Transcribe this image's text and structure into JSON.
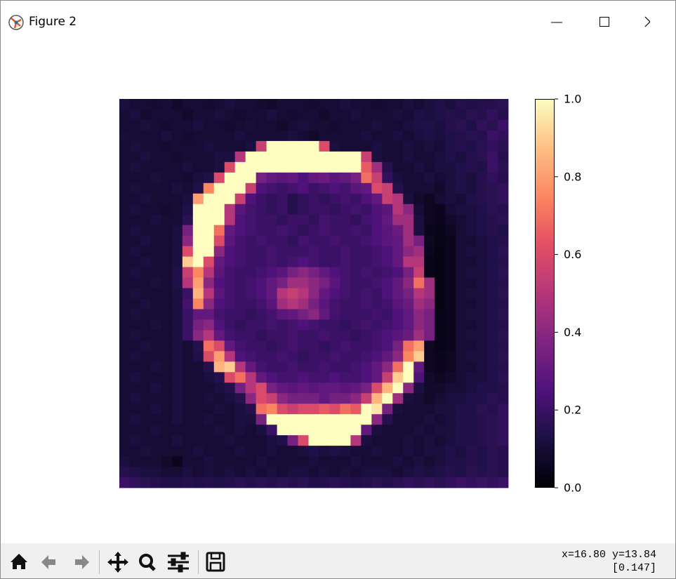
{
  "window": {
    "title": "Figure 2"
  },
  "status": {
    "coords": "x=16.80 y=13.84",
    "value": "[0.147]"
  },
  "chart_data": {
    "type": "heatmap",
    "colormap": "magma",
    "zlim": [
      0,
      1
    ],
    "colorbar_ticks": [
      {
        "value": 0,
        "label": "0.0"
      },
      0.2,
      0.4,
      0.6,
      0.8,
      {
        "value": 1,
        "label": "1.0"
      }
    ],
    "z": [
      [
        0.12,
        0.1,
        0.1,
        0.09,
        0.1,
        0.08,
        0.1,
        0.1,
        0.09,
        0.1,
        0.12,
        0.1,
        0.1,
        0.09,
        0.08,
        0.1,
        0.1,
        0.1,
        0.09,
        0.1,
        0.1,
        0.12,
        0.1,
        0.1,
        0.09,
        0.1,
        0.1,
        0.12,
        0.1,
        0.12,
        0.14,
        0.12,
        0.15,
        0.14,
        0.15,
        0.15,
        0.16
      ],
      [
        0.1,
        0.12,
        0.09,
        0.1,
        0.1,
        0.1,
        0.08,
        0.1,
        0.1,
        0.12,
        0.1,
        0.09,
        0.1,
        0.1,
        0.12,
        0.1,
        0.09,
        0.1,
        0.1,
        0.08,
        0.1,
        0.1,
        0.12,
        0.1,
        0.1,
        0.1,
        0.12,
        0.1,
        0.13,
        0.12,
        0.14,
        0.15,
        0.14,
        0.16,
        0.15,
        0.18,
        0.15
      ],
      [
        0.1,
        0.1,
        0.12,
        0.1,
        0.09,
        0.1,
        0.1,
        0.12,
        0.1,
        0.1,
        0.09,
        0.1,
        0.11,
        0.1,
        0.1,
        0.08,
        0.1,
        0.12,
        0.1,
        0.1,
        0.09,
        0.1,
        0.1,
        0.1,
        0.12,
        0.1,
        0.1,
        0.12,
        0.13,
        0.14,
        0.12,
        0.15,
        0.16,
        0.14,
        0.18,
        0.16,
        0.2
      ],
      [
        0.11,
        0.1,
        0.1,
        0.1,
        0.12,
        0.1,
        0.09,
        0.1,
        0.1,
        0.1,
        0.1,
        0.12,
        0.1,
        0.1,
        0.1,
        0.1,
        0.12,
        0.1,
        0.08,
        0.1,
        0.1,
        0.1,
        0.1,
        0.12,
        0.1,
        0.1,
        0.12,
        0.1,
        0.12,
        0.13,
        0.12,
        0.14,
        0.15,
        0.16,
        0.15,
        0.2,
        0.18
      ],
      [
        0.1,
        0.12,
        0.1,
        0.1,
        0.09,
        0.1,
        0.1,
        0.1,
        0.12,
        0.1,
        0.1,
        0.1,
        0.12,
        0.55,
        1,
        1,
        1,
        1,
        1,
        0.6,
        0.12,
        0.1,
        0.1,
        0.1,
        0.12,
        0.1,
        0.1,
        0.12,
        0.1,
        0.12,
        0.1,
        0.14,
        0.15,
        0.14,
        0.16,
        0.18,
        0.16
      ],
      [
        0.1,
        0.1,
        0.12,
        0.1,
        0.1,
        0.09,
        0.1,
        0.1,
        0.1,
        0.12,
        0.12,
        0.5,
        1,
        1,
        1,
        1,
        1,
        1,
        1,
        1,
        1,
        1,
        1,
        0.55,
        0.12,
        0.1,
        0.1,
        0.12,
        0.1,
        0.1,
        0.12,
        0.14,
        0.12,
        0.15,
        0.16,
        0.2,
        0.15
      ],
      [
        0.1,
        0.12,
        0.1,
        0.1,
        0.1,
        0.1,
        0.12,
        0.1,
        0.1,
        0.12,
        0.6,
        1,
        1,
        1,
        1,
        1,
        1,
        1,
        1,
        1,
        1,
        1,
        1,
        0.65,
        0.45,
        0.15,
        0.1,
        0.1,
        0.12,
        0.1,
        0.12,
        0.12,
        0.14,
        0.15,
        0.14,
        0.2,
        0.16
      ],
      [
        0.1,
        0.1,
        0.1,
        0.12,
        0.1,
        0.1,
        0.09,
        0.12,
        0.14,
        0.6,
        1,
        1,
        1,
        0.35,
        0.3,
        0.28,
        0.3,
        0.25,
        0.3,
        0.32,
        0.28,
        0.3,
        0.35,
        0.7,
        0.55,
        0.18,
        0.12,
        0.1,
        0.1,
        0.12,
        0.1,
        0.12,
        0.14,
        0.12,
        0.15,
        0.18,
        0.15
      ],
      [
        0.1,
        0.12,
        0.1,
        0.1,
        0.1,
        0.12,
        0.1,
        0.14,
        0.75,
        1,
        1,
        1,
        0.55,
        0.25,
        0.22,
        0.2,
        0.22,
        0.25,
        0.2,
        0.22,
        0.25,
        0.22,
        0.28,
        0.3,
        0.6,
        0.55,
        0.15,
        0.1,
        0.1,
        0.1,
        0.08,
        0.12,
        0.14,
        0.12,
        0.15,
        0.16,
        0.18
      ],
      [
        0.1,
        0.1,
        0.12,
        0.1,
        0.1,
        0.1,
        0.12,
        0.8,
        1,
        1,
        1,
        0.55,
        0.25,
        0.2,
        0.18,
        0.2,
        0.15,
        0.18,
        0.2,
        0.18,
        0.2,
        0.22,
        0.2,
        0.25,
        0.3,
        0.55,
        0.5,
        0.12,
        0.08,
        0.06,
        0.1,
        0.12,
        0.1,
        0.14,
        0.15,
        0.16,
        0.18
      ],
      [
        0.1,
        0.12,
        0.1,
        0.1,
        0.09,
        0.1,
        0.14,
        1,
        1,
        1,
        0.5,
        0.28,
        0.22,
        0.2,
        0.18,
        0.2,
        0.15,
        0.18,
        0.2,
        0.2,
        0.18,
        0.2,
        0.22,
        0.2,
        0.25,
        0.28,
        0.5,
        0.4,
        0.1,
        0.06,
        0.05,
        0.1,
        0.12,
        0.12,
        0.14,
        0.16,
        0.15
      ],
      [
        0.1,
        0.1,
        0.1,
        0.12,
        0.1,
        0.1,
        0.16,
        1,
        1,
        1,
        0.5,
        0.25,
        0.22,
        0.2,
        0.2,
        0.18,
        0.2,
        0.2,
        0.18,
        0.22,
        0.2,
        0.2,
        0.18,
        0.22,
        0.25,
        0.3,
        0.45,
        0.45,
        0.12,
        0.06,
        0.05,
        0.08,
        0.1,
        0.12,
        0.14,
        0.15,
        0.16
      ],
      [
        0.1,
        0.12,
        0.1,
        0.1,
        0.1,
        0.12,
        0.35,
        1,
        1,
        0.7,
        0.3,
        0.25,
        0.22,
        0.2,
        0.2,
        0.22,
        0.2,
        0.18,
        0.2,
        0.22,
        0.2,
        0.2,
        0.22,
        0.2,
        0.25,
        0.28,
        0.32,
        0.45,
        0.12,
        0.05,
        0.04,
        0.06,
        0.1,
        0.12,
        0.14,
        0.15,
        0.14
      ],
      [
        0.1,
        0.1,
        0.12,
        0.1,
        0.1,
        0.12,
        0.4,
        1,
        1,
        0.6,
        0.28,
        0.22,
        0.2,
        0.22,
        0.2,
        0.2,
        0.18,
        0.22,
        0.2,
        0.2,
        0.22,
        0.2,
        0.2,
        0.22,
        0.25,
        0.28,
        0.3,
        0.45,
        0.35,
        0.06,
        0.04,
        0.05,
        0.1,
        0.1,
        0.12,
        0.14,
        0.15
      ],
      [
        0.1,
        0.12,
        0.1,
        0.1,
        0.1,
        0.12,
        0.6,
        1,
        1,
        0.4,
        0.25,
        0.22,
        0.2,
        0.2,
        0.22,
        0.2,
        0.2,
        0.2,
        0.22,
        0.2,
        0.2,
        0.22,
        0.2,
        0.2,
        0.22,
        0.25,
        0.3,
        0.4,
        0.45,
        0.05,
        0.03,
        0.05,
        0.1,
        0.12,
        0.12,
        0.14,
        0.16
      ],
      [
        0.1,
        0.1,
        0.12,
        0.1,
        0.1,
        0.12,
        0.9,
        1,
        0.6,
        0.3,
        0.25,
        0.22,
        0.2,
        0.2,
        0.22,
        0.2,
        0.22,
        0.25,
        0.22,
        0.2,
        0.2,
        0.22,
        0.2,
        0.2,
        0.22,
        0.25,
        0.3,
        0.5,
        0.5,
        0.04,
        0.03,
        0.05,
        0.1,
        0.1,
        0.12,
        0.14,
        0.15
      ],
      [
        0.1,
        0.12,
        0.1,
        0.1,
        0.1,
        0.14,
        0.55,
        0.75,
        0.5,
        0.28,
        0.22,
        0.2,
        0.2,
        0.22,
        0.25,
        0.28,
        0.35,
        0.4,
        0.35,
        0.3,
        0.25,
        0.22,
        0.2,
        0.22,
        0.2,
        0.22,
        0.25,
        0.35,
        0.55,
        0.04,
        0.03,
        0.05,
        0.1,
        0.12,
        0.12,
        0.14,
        0.16
      ],
      [
        0.1,
        0.1,
        0.1,
        0.12,
        0.1,
        0.14,
        0.5,
        0.8,
        0.4,
        0.25,
        0.22,
        0.2,
        0.22,
        0.25,
        0.3,
        0.35,
        0.45,
        0.45,
        0.4,
        0.35,
        0.28,
        0.22,
        0.2,
        0.2,
        0.22,
        0.25,
        0.3,
        0.4,
        0.7,
        0.45,
        0.03,
        0.05,
        0.1,
        0.1,
        0.12,
        0.14,
        0.15
      ],
      [
        0.1,
        0.12,
        0.1,
        0.1,
        0.1,
        0.12,
        0.2,
        0.85,
        0.5,
        0.28,
        0.22,
        0.2,
        0.22,
        0.25,
        0.3,
        0.5,
        0.55,
        0.5,
        0.4,
        0.3,
        0.25,
        0.22,
        0.2,
        0.22,
        0.2,
        0.25,
        0.3,
        0.35,
        0.5,
        0.45,
        0.03,
        0.05,
        0.1,
        0.12,
        0.12,
        0.14,
        0.16
      ],
      [
        0.1,
        0.1,
        0.12,
        0.1,
        0.1,
        0.12,
        0.22,
        0.75,
        0.4,
        0.25,
        0.22,
        0.2,
        0.2,
        0.22,
        0.28,
        0.45,
        0.5,
        0.45,
        0.35,
        0.28,
        0.22,
        0.2,
        0.2,
        0.22,
        0.2,
        0.22,
        0.28,
        0.32,
        0.45,
        0.4,
        0.03,
        0.05,
        0.1,
        0.1,
        0.12,
        0.14,
        0.15
      ],
      [
        0.1,
        0.12,
        0.1,
        0.1,
        0.1,
        0.12,
        0.2,
        0.3,
        0.3,
        0.22,
        0.2,
        0.2,
        0.18,
        0.2,
        0.22,
        0.28,
        0.3,
        0.35,
        0.4,
        0.3,
        0.22,
        0.2,
        0.2,
        0.2,
        0.22,
        0.2,
        0.25,
        0.3,
        0.4,
        0.35,
        0.04,
        0.05,
        0.1,
        0.12,
        0.12,
        0.14,
        0.16
      ],
      [
        0.1,
        0.1,
        0.1,
        0.12,
        0.1,
        0.12,
        0.2,
        0.35,
        0.4,
        0.25,
        0.2,
        0.18,
        0.2,
        0.2,
        0.22,
        0.2,
        0.22,
        0.25,
        0.22,
        0.2,
        0.2,
        0.18,
        0.2,
        0.22,
        0.2,
        0.22,
        0.25,
        0.3,
        0.4,
        0.35,
        0.04,
        0.05,
        0.1,
        0.1,
        0.12,
        0.14,
        0.15
      ],
      [
        0.1,
        0.12,
        0.1,
        0.1,
        0.1,
        0.12,
        0.2,
        0.4,
        0.5,
        0.3,
        0.22,
        0.2,
        0.2,
        0.18,
        0.2,
        0.2,
        0.22,
        0.2,
        0.2,
        0.22,
        0.2,
        0.2,
        0.18,
        0.2,
        0.22,
        0.25,
        0.28,
        0.32,
        0.45,
        0.35,
        0.04,
        0.05,
        0.1,
        0.12,
        0.12,
        0.14,
        0.16
      ],
      [
        0.1,
        0.1,
        0.12,
        0.1,
        0.1,
        0.12,
        0.1,
        0.15,
        0.7,
        0.6,
        0.3,
        0.22,
        0.2,
        0.2,
        0.18,
        0.2,
        0.22,
        0.2,
        0.2,
        0.18,
        0.2,
        0.22,
        0.2,
        0.2,
        0.22,
        0.25,
        0.35,
        0.7,
        0.8,
        0.06,
        0.04,
        0.05,
        0.1,
        0.1,
        0.12,
        0.14,
        0.15
      ],
      [
        0.1,
        0.12,
        0.1,
        0.1,
        0.1,
        0.12,
        0.1,
        0.14,
        0.6,
        0.8,
        0.5,
        0.25,
        0.22,
        0.2,
        0.2,
        0.22,
        0.2,
        0.18,
        0.2,
        0.2,
        0.22,
        0.2,
        0.2,
        0.22,
        0.25,
        0.3,
        0.4,
        0.75,
        0.9,
        0.06,
        0.05,
        0.06,
        0.1,
        0.12,
        0.12,
        0.14,
        0.16
      ],
      [
        0.1,
        0.1,
        0.1,
        0.12,
        0.1,
        0.12,
        0.1,
        0.1,
        0.15,
        0.85,
        0.9,
        0.5,
        0.3,
        0.22,
        0.2,
        0.2,
        0.22,
        0.2,
        0.2,
        0.22,
        0.2,
        0.2,
        0.22,
        0.25,
        0.3,
        0.4,
        0.7,
        1,
        0.3,
        0.06,
        0.05,
        0.06,
        0.1,
        0.1,
        0.12,
        0.14,
        0.15
      ],
      [
        0.1,
        0.12,
        0.1,
        0.1,
        0.1,
        0.12,
        0.1,
        0.1,
        0.12,
        0.15,
        0.6,
        0.7,
        0.5,
        0.3,
        0.25,
        0.22,
        0.22,
        0.25,
        0.22,
        0.22,
        0.25,
        0.22,
        0.22,
        0.25,
        0.3,
        0.55,
        0.9,
        1,
        0.25,
        0.08,
        0.06,
        0.08,
        0.1,
        0.12,
        0.12,
        0.14,
        0.16
      ],
      [
        0.1,
        0.1,
        0.1,
        0.12,
        0.1,
        0.12,
        0.1,
        0.1,
        0.1,
        0.12,
        0.15,
        0.35,
        0.5,
        0.6,
        0.35,
        0.3,
        0.28,
        0.3,
        0.28,
        0.3,
        0.3,
        0.28,
        0.3,
        0.35,
        0.6,
        0.85,
        1,
        0.4,
        0.12,
        0.08,
        0.08,
        0.1,
        0.1,
        0.12,
        0.14,
        0.14,
        0.15
      ],
      [
        0.1,
        0.12,
        0.1,
        0.1,
        0.1,
        0.12,
        0.1,
        0.1,
        0.12,
        0.1,
        0.12,
        0.15,
        0.4,
        0.6,
        0.55,
        0.4,
        0.35,
        0.35,
        0.35,
        0.3,
        0.35,
        0.35,
        0.4,
        0.55,
        0.85,
        1,
        0.45,
        0.12,
        0.1,
        0.08,
        0.1,
        0.12,
        0.12,
        0.14,
        0.14,
        0.16,
        0.15
      ],
      [
        0.1,
        0.1,
        0.1,
        0.12,
        0.1,
        0.12,
        0.1,
        0.1,
        0.1,
        0.12,
        0.1,
        0.12,
        0.15,
        0.7,
        0.75,
        0.6,
        0.55,
        0.6,
        0.6,
        0.65,
        0.6,
        0.7,
        0.65,
        1,
        0.95,
        0.35,
        0.12,
        0.1,
        0.1,
        0.1,
        0.12,
        0.12,
        0.14,
        0.14,
        0.16,
        0.15,
        0.18
      ],
      [
        0.1,
        0.12,
        0.1,
        0.1,
        0.1,
        0.12,
        0.1,
        0.1,
        0.12,
        0.1,
        0.1,
        0.12,
        0.12,
        0.35,
        1,
        1,
        1,
        1,
        1,
        1,
        1,
        1,
        1,
        1,
        0.4,
        0.15,
        0.1,
        0.1,
        0.1,
        0.12,
        0.1,
        0.12,
        0.14,
        0.14,
        0.15,
        0.16,
        0.18
      ],
      [
        0.1,
        0.1,
        0.1,
        0.12,
        0.1,
        0.1,
        0.1,
        0.1,
        0.1,
        0.12,
        0.1,
        0.12,
        0.1,
        0.12,
        0.2,
        1,
        1,
        1,
        1,
        1,
        1,
        1,
        1,
        0.3,
        0.12,
        0.1,
        0.1,
        0.1,
        0.12,
        0.1,
        0.12,
        0.12,
        0.14,
        0.14,
        0.15,
        0.16,
        0.18
      ],
      [
        0.1,
        0.12,
        0.1,
        0.1,
        0.1,
        0.12,
        0.1,
        0.1,
        0.1,
        0.1,
        0.12,
        0.1,
        0.1,
        0.1,
        0.12,
        0.14,
        0.35,
        0.6,
        1,
        1,
        1,
        1,
        0.5,
        0.12,
        0.1,
        0.1,
        0.1,
        0.12,
        0.1,
        0.12,
        0.1,
        0.12,
        0.14,
        0.14,
        0.15,
        0.16,
        0.18
      ],
      [
        0.1,
        0.1,
        0.12,
        0.1,
        0.1,
        0.1,
        0.1,
        0.12,
        0.1,
        0.1,
        0.1,
        0.12,
        0.1,
        0.1,
        0.12,
        0.1,
        0.1,
        0.12,
        0.14,
        0.12,
        0.14,
        0.12,
        0.1,
        0.1,
        0.12,
        0.1,
        0.1,
        0.12,
        0.1,
        0.12,
        0.12,
        0.14,
        0.12,
        0.15,
        0.14,
        0.16,
        0.15
      ],
      [
        0.12,
        0.1,
        0.1,
        0.1,
        0.08,
        0.05,
        0.1,
        0.1,
        0.12,
        0.1,
        0.1,
        0.1,
        0.1,
        0.12,
        0.1,
        0.1,
        0.1,
        0.1,
        0.12,
        0.1,
        0.1,
        0.1,
        0.12,
        0.1,
        0.1,
        0.1,
        0.12,
        0.1,
        0.12,
        0.1,
        0.12,
        0.14,
        0.14,
        0.15,
        0.14,
        0.16,
        0.15
      ],
      [
        0.15,
        0.14,
        0.12,
        0.12,
        0.1,
        0.1,
        0.12,
        0.1,
        0.12,
        0.1,
        0.12,
        0.1,
        0.12,
        0.1,
        0.12,
        0.1,
        0.12,
        0.12,
        0.1,
        0.12,
        0.1,
        0.12,
        0.1,
        0.12,
        0.12,
        0.12,
        0.1,
        0.12,
        0.14,
        0.12,
        0.14,
        0.15,
        0.14,
        0.16,
        0.15,
        0.16,
        0.15
      ],
      [
        0.2,
        0.18,
        0.16,
        0.15,
        0.14,
        0.14,
        0.15,
        0.14,
        0.15,
        0.14,
        0.15,
        0.16,
        0.15,
        0.16,
        0.15,
        0.16,
        0.15,
        0.16,
        0.14,
        0.15,
        0.16,
        0.15,
        0.14,
        0.15,
        0.16,
        0.15,
        0.16,
        0.18,
        0.16,
        0.18,
        0.16,
        0.18,
        0.2,
        0.18,
        0.2,
        0.18,
        0.2
      ]
    ]
  }
}
